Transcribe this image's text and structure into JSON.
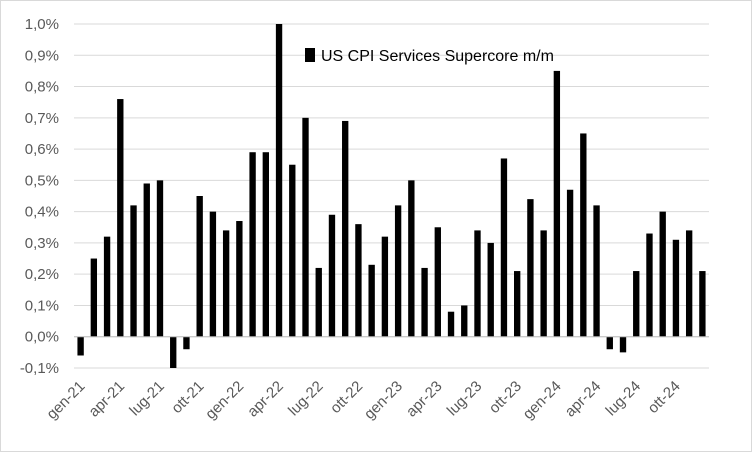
{
  "chart_data": {
    "type": "bar",
    "legend": {
      "label": "US CPI Services Supercore m/m",
      "placement": "top-center"
    },
    "bar_color": "#000000",
    "grid": true,
    "ylim": [
      -0.1,
      1.0
    ],
    "y_ticks": [
      -0.1,
      0.0,
      0.1,
      0.2,
      0.3,
      0.4,
      0.5,
      0.6,
      0.7,
      0.8,
      0.9,
      1.0
    ],
    "y_tick_labels": [
      "-0,1%",
      "0,0%",
      "0,1%",
      "0,2%",
      "0,3%",
      "0,4%",
      "0,5%",
      "0,6%",
      "0,7%",
      "0,8%",
      "0,9%",
      "1,0%"
    ],
    "x_tick_labels": [
      {
        "index": 0,
        "label": "gen-21"
      },
      {
        "index": 3,
        "label": "apr-21"
      },
      {
        "index": 6,
        "label": "lug-21"
      },
      {
        "index": 9,
        "label": "ott-21"
      },
      {
        "index": 12,
        "label": "gen-22"
      },
      {
        "index": 15,
        "label": "apr-22"
      },
      {
        "index": 18,
        "label": "lug-22"
      },
      {
        "index": 21,
        "label": "ott-22"
      },
      {
        "index": 24,
        "label": "gen-23"
      },
      {
        "index": 27,
        "label": "apr-23"
      },
      {
        "index": 30,
        "label": "lug-23"
      },
      {
        "index": 33,
        "label": "ott-23"
      },
      {
        "index": 36,
        "label": "gen-24"
      },
      {
        "index": 39,
        "label": "apr-24"
      },
      {
        "index": 42,
        "label": "lug-24"
      },
      {
        "index": 45,
        "label": "ott-24"
      }
    ],
    "categories": [
      "gen-21",
      "feb-21",
      "mar-21",
      "apr-21",
      "mag-21",
      "giu-21",
      "lug-21",
      "ago-21",
      "set-21",
      "ott-21",
      "nov-21",
      "dic-21",
      "gen-22",
      "feb-22",
      "mar-22",
      "apr-22",
      "mag-22",
      "giu-22",
      "lug-22",
      "ago-22",
      "set-22",
      "ott-22",
      "nov-22",
      "dic-22",
      "gen-23",
      "feb-23",
      "mar-23",
      "apr-23",
      "mag-23",
      "giu-23",
      "lug-23",
      "ago-23",
      "set-23",
      "ott-23",
      "nov-23",
      "dic-23",
      "gen-24",
      "feb-24",
      "mar-24",
      "apr-24",
      "mag-24",
      "giu-24",
      "lug-24",
      "ago-24",
      "set-24",
      "ott-24",
      "nov-24",
      "dic-24"
    ],
    "values": [
      -0.06,
      0.25,
      0.32,
      0.76,
      0.42,
      0.49,
      0.5,
      -0.1,
      -0.04,
      0.45,
      0.4,
      0.34,
      0.37,
      0.59,
      0.59,
      1.0,
      0.55,
      0.7,
      0.22,
      0.39,
      0.69,
      0.36,
      0.23,
      0.32,
      0.42,
      0.5,
      0.22,
      0.35,
      0.08,
      0.1,
      0.34,
      0.3,
      0.57,
      0.21,
      0.44,
      0.34,
      0.85,
      0.47,
      0.65,
      0.42,
      -0.04,
      -0.05,
      0.21,
      0.33,
      0.4,
      0.31,
      0.34,
      0.21
    ]
  }
}
